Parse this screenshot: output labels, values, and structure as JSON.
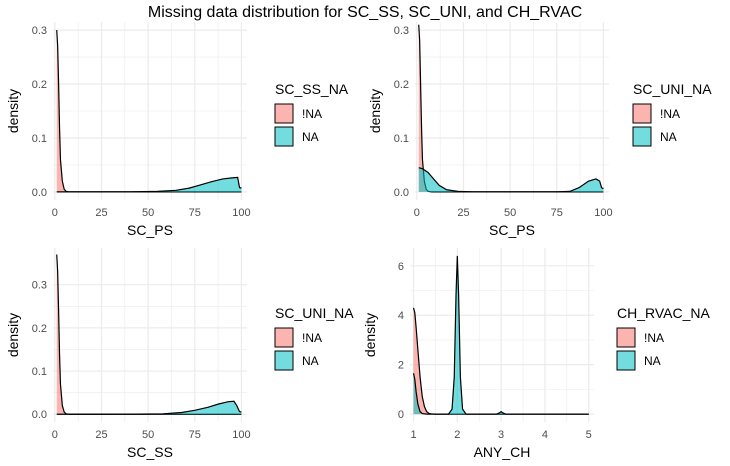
{
  "title": "Missing data distribution for SC_SS, SC_UNI, and CH_RVAC",
  "colors": {
    "notna": "#F8766D",
    "na": "#00BFC4",
    "grid": "#ebebeb",
    "line": "#000000"
  },
  "chart_data": [
    {
      "type": "area",
      "xlabel": "SC_PS",
      "ylabel": "density",
      "xlim": [
        0,
        100
      ],
      "ylim": [
        0,
        0.3
      ],
      "xticks": [
        0,
        25,
        50,
        75,
        100
      ],
      "yticks": [
        0.0,
        0.1,
        0.2,
        0.3
      ],
      "legend_title": "SC_SS_NA",
      "series": [
        {
          "name": "!NA",
          "color": "#F8766D",
          "x": [
            1,
            1.5,
            2,
            2.5,
            3,
            4,
            5,
            6,
            8,
            100
          ],
          "y": [
            0.3,
            0.27,
            0.2,
            0.12,
            0.06,
            0.02,
            0.005,
            0.001,
            0,
            0
          ]
        },
        {
          "name": "NA",
          "color": "#00BFC4",
          "x": [
            1,
            20,
            40,
            55,
            65,
            72,
            78,
            84,
            90,
            95,
            98,
            99,
            100
          ],
          "y": [
            0,
            0,
            0.0002,
            0.001,
            0.003,
            0.007,
            0.013,
            0.019,
            0.024,
            0.026,
            0.027,
            0.008,
            0.007
          ]
        }
      ]
    },
    {
      "type": "area",
      "xlabel": "SC_PS",
      "ylabel": "density",
      "xlim": [
        0,
        100
      ],
      "ylim": [
        0,
        0.3
      ],
      "xticks": [
        0,
        25,
        50,
        75,
        100
      ],
      "yticks": [
        0.0,
        0.1,
        0.2,
        0.3
      ],
      "legend_title": "SC_UNI_NA",
      "series": [
        {
          "name": "!NA",
          "color": "#F8766D",
          "x": [
            1,
            1.5,
            2,
            2.5,
            3,
            4,
            5,
            6,
            8,
            100
          ],
          "y": [
            0.31,
            0.28,
            0.2,
            0.12,
            0.06,
            0.02,
            0.005,
            0.001,
            0,
            0
          ]
        },
        {
          "name": "NA",
          "color": "#00BFC4",
          "x": [
            1,
            3,
            6,
            9,
            12,
            16,
            22,
            30,
            50,
            75,
            82,
            87,
            92,
            96,
            98,
            99,
            100
          ],
          "y": [
            0.045,
            0.043,
            0.036,
            0.024,
            0.012,
            0.004,
            0.001,
            0,
            0,
            0,
            0.001,
            0.008,
            0.02,
            0.024,
            0.02,
            0.008,
            0.006
          ]
        }
      ]
    },
    {
      "type": "area",
      "xlabel": "SC_SS",
      "ylabel": "density",
      "xlim": [
        0,
        100
      ],
      "ylim": [
        0,
        0.3
      ],
      "xticks": [
        0,
        25,
        50,
        75,
        100
      ],
      "yticks": [
        0.0,
        0.1,
        0.2,
        0.3
      ],
      "legend_title": "SC_UNI_NA",
      "series": [
        {
          "name": "!NA",
          "color": "#F8766D",
          "x": [
            1,
            1.5,
            2,
            2.5,
            3,
            4,
            5,
            6,
            8,
            100
          ],
          "y": [
            0.37,
            0.33,
            0.24,
            0.14,
            0.07,
            0.02,
            0.005,
            0.001,
            0,
            0
          ]
        },
        {
          "name": "NA",
          "color": "#00BFC4",
          "x": [
            1,
            25,
            45,
            58,
            68,
            75,
            82,
            88,
            93,
            96,
            97.5,
            99,
            100
          ],
          "y": [
            0,
            0,
            0.0002,
            0.001,
            0.004,
            0.009,
            0.016,
            0.024,
            0.029,
            0.03,
            0.02,
            0.006,
            0.005
          ]
        }
      ]
    },
    {
      "type": "area",
      "xlabel": "ANY_CH",
      "ylabel": "density",
      "xlim": [
        1,
        5
      ],
      "ylim": [
        0,
        6
      ],
      "xticks": [
        1,
        2,
        3,
        4,
        5
      ],
      "yticks": [
        0,
        2,
        4,
        6
      ],
      "legend_title": "CH_RVAC_NA",
      "series": [
        {
          "name": "!NA",
          "color": "#F8766D",
          "x": [
            1,
            1.03,
            1.06,
            1.1,
            1.15,
            1.2,
            1.25,
            1.3,
            1.35,
            1.4,
            1.5,
            5
          ],
          "y": [
            4.3,
            4.1,
            3.5,
            2.6,
            1.5,
            0.7,
            0.3,
            0.1,
            0.03,
            0.01,
            0,
            0
          ]
        },
        {
          "name": "NA",
          "color": "#00BFC4",
          "x": [
            1,
            1.03,
            1.06,
            1.1,
            1.15,
            1.2,
            1.3,
            1.8,
            1.88,
            1.93,
            1.97,
            2.0,
            2.03,
            2.07,
            2.12,
            2.2,
            2.9,
            2.97,
            3.0,
            3.03,
            3.1,
            5
          ],
          "y": [
            1.65,
            1.4,
            0.9,
            0.4,
            0.1,
            0.02,
            0,
            0,
            0.2,
            1.5,
            4.8,
            6.4,
            4.8,
            1.5,
            0.2,
            0,
            0,
            0.06,
            0.1,
            0.06,
            0,
            0
          ]
        }
      ]
    }
  ]
}
